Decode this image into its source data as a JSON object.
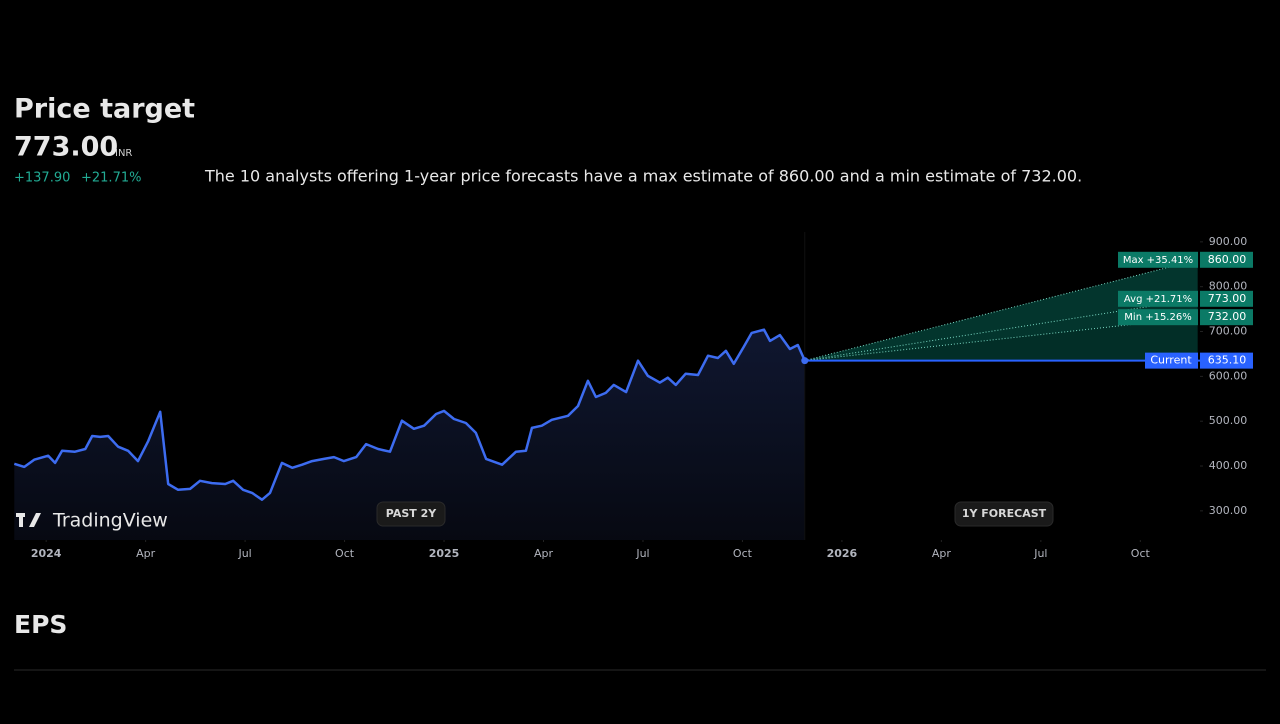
{
  "header": {
    "title": "Price target",
    "price": "773.00",
    "currency": "INR",
    "change": "+137.90",
    "change_percent": "+21.71%",
    "description": "The 10 analysts offering 1-year price forecasts have a max estimate of 860.00 and a min estimate of 732.00."
  },
  "chart_data": {
    "type": "line",
    "x": [
      -0.96,
      -0.66,
      -0.36,
      0.06,
      0.27,
      0.48,
      0.87,
      1.18,
      1.39,
      1.63,
      1.87,
      2.17,
      2.47,
      2.77,
      3.08,
      3.44,
      3.68,
      3.98,
      4.34,
      4.64,
      5.0,
      5.4,
      5.64,
      5.94,
      6.21,
      6.51,
      6.75,
      7.11,
      7.42,
      7.72,
      8.02,
      8.38,
      8.68,
      8.98,
      9.35,
      9.65,
      10.01,
      10.37,
      10.73,
      11.09,
      11.4,
      11.76,
      12.0,
      12.3,
      12.66,
      12.96,
      13.27,
      13.75,
      14.17,
      14.47,
      14.65,
      14.95,
      15.25,
      15.74,
      16.04,
      16.34,
      16.58,
      16.88,
      17.12,
      17.49,
      17.85,
      18.15,
      18.51,
      18.75,
      18.99,
      19.29,
      19.66,
      19.96,
      20.26,
      20.5,
      20.74,
      21.04,
      21.28,
      21.65,
      21.83,
      22.13,
      22.43,
      22.67,
      22.88
    ],
    "series": [
      {
        "color": "#3d6cf0",
        "values": [
          405,
          398,
          414,
          423,
          407,
          434,
          432,
          438,
          467,
          465,
          467,
          443,
          434,
          411,
          456,
          521,
          360,
          347,
          349,
          367,
          362,
          360,
          367,
          347,
          340,
          325,
          340,
          407,
          396,
          403,
          411,
          416,
          420,
          411,
          420,
          449,
          438,
          432,
          501,
          483,
          490,
          516,
          523,
          505,
          496,
          474,
          416,
          403,
          432,
          434,
          485,
          490,
          503,
          512,
          534,
          590,
          554,
          563,
          581,
          565,
          635,
          601,
          586,
          597,
          581,
          606,
          603,
          646,
          641,
          657,
          628,
          666,
          697,
          704,
          679,
          692,
          661,
          670,
          635.1
        ]
      }
    ],
    "current": {
      "name": "Current",
      "value": 635.1,
      "label": "635.10"
    },
    "forecast": {
      "x_end": 34.73,
      "color": "#089981",
      "targets": [
        {
          "name": "Max +35.41%",
          "value": 860,
          "label": "860.00"
        },
        {
          "name": "Avg +21.71%",
          "value": 773,
          "label": "773.00"
        },
        {
          "name": "Min +15.26%",
          "value": 732,
          "label": "732.00"
        }
      ]
    },
    "xlim": [
      -0.97,
      34.8
    ],
    "ylim": [
      235,
      922
    ],
    "xticks": [
      {
        "value": 0,
        "label": "2024"
      },
      {
        "value": 3,
        "label": "Apr"
      },
      {
        "value": 6,
        "label": "Jul"
      },
      {
        "value": 9,
        "label": "Oct"
      },
      {
        "value": 12,
        "label": "2025"
      },
      {
        "value": 15,
        "label": "Apr"
      },
      {
        "value": 18,
        "label": "Jul"
      },
      {
        "value": 21,
        "label": "Oct"
      },
      {
        "value": 24,
        "label": "2026"
      },
      {
        "value": 27,
        "label": "Apr"
      },
      {
        "value": 30,
        "label": "Jul"
      },
      {
        "value": 33,
        "label": "Oct"
      }
    ],
    "yticks": [
      {
        "value": 300,
        "label": "300.00"
      },
      {
        "value": 400,
        "label": "400.00"
      },
      {
        "value": 500,
        "label": "500.00"
      },
      {
        "value": 600,
        "label": "600.00"
      },
      {
        "value": 700,
        "label": "700.00"
      },
      {
        "value": 800,
        "label": "800.00"
      },
      {
        "value": 900,
        "label": "900.00"
      }
    ],
    "past_label": "PAST 2Y",
    "forecast_label": "1Y FORECAST",
    "brand": "TradingView"
  },
  "next_section": "EPS"
}
